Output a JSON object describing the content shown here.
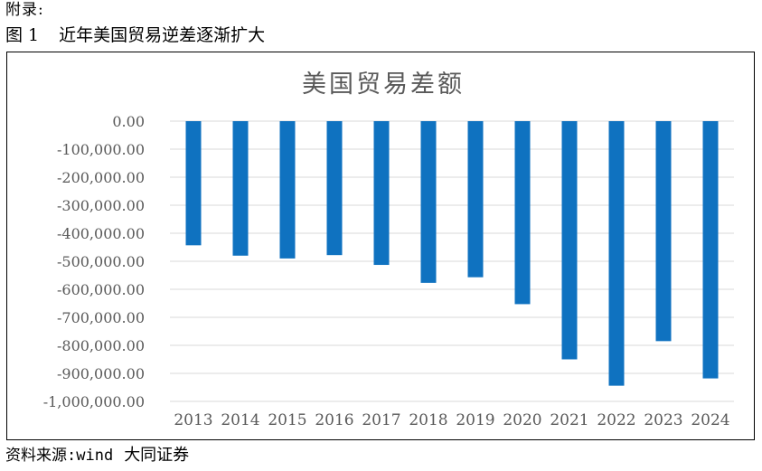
{
  "header": {
    "appendix_label": "附录:",
    "figure_number": "图 1",
    "figure_title": "近年美国贸易逆差逐渐扩大"
  },
  "footer": {
    "source_label": "资料来源:wind",
    "source_org": "大同证券"
  },
  "colors": {
    "bar": "#0F72C0",
    "grid": "#D9D9D9",
    "axis_text": "#595959",
    "title_text": "#595959"
  },
  "chart_data": {
    "type": "bar",
    "title": "美国贸易差额",
    "xlabel": "",
    "ylabel": "",
    "categories": [
      "2013",
      "2014",
      "2015",
      "2016",
      "2017",
      "2018",
      "2019",
      "2020",
      "2021",
      "2022",
      "2023",
      "2024"
    ],
    "values": [
      -443000,
      -480000,
      -490000,
      -478000,
      -513000,
      -577000,
      -557000,
      -653000,
      -850000,
      -944000,
      -785000,
      -918000
    ],
    "ylim": [
      -1000000,
      0
    ],
    "yticks": [
      0,
      -100000,
      -200000,
      -300000,
      -400000,
      -500000,
      -600000,
      -700000,
      -800000,
      -900000,
      -1000000
    ],
    "ytick_labels": [
      "0.00",
      "-100,000.00",
      "-200,000.00",
      "-300,000.00",
      "-400,000.00",
      "-500,000.00",
      "-600,000.00",
      "-700,000.00",
      "-800,000.00",
      "-900,000.00",
      "-1,000,000.00"
    ],
    "grid": true,
    "legend": "none"
  }
}
